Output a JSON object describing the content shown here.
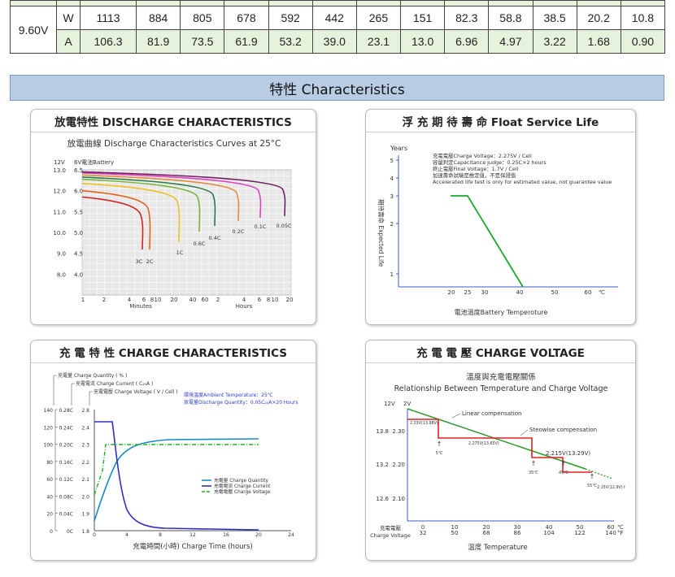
{
  "table": {
    "voltage": "9.60V",
    "rows": [
      {
        "unit": "W",
        "values": [
          "1113",
          "884",
          "805",
          "678",
          "592",
          "442",
          "265",
          "151",
          "82.3",
          "58.8",
          "38.5",
          "20.2",
          "10.8"
        ]
      },
      {
        "unit": "A",
        "values": [
          "106.3",
          "81.9",
          "73.5",
          "61.9",
          "53.2",
          "39.0",
          "23.1",
          "13.0",
          "6.96",
          "4.97",
          "3.22",
          "1.68",
          "0.90"
        ]
      }
    ]
  },
  "section_title": "特性  Characteristics",
  "discharge": {
    "title": "放電特性 DISCHARGE CHARACTERISTICS",
    "subtitle": "放電曲線 Discharge Characteristics Curves at 25°C",
    "y_unit_left": "12V",
    "y_unit_right": "6V電池Battery",
    "y_ticks_12": [
      "13.0",
      "12.0",
      "11.0",
      "10.0",
      "9.0",
      "8.0"
    ],
    "y_ticks_6": [
      "6.5",
      "6.0",
      "5.5",
      "5.0",
      "4.5",
      "4.0"
    ],
    "x_ticks_min": [
      "1",
      "2",
      "4",
      "6",
      "8",
      "10",
      "20",
      "40",
      "60"
    ],
    "x_ticks_hr": [
      "2",
      "4",
      "6",
      "8",
      "10",
      "20"
    ],
    "x_label_min": "Minutes",
    "x_label_hr": "Hours",
    "curve_labels": [
      "3C",
      "2C",
      "1C",
      "0.6C",
      "0.4C",
      "0.2C",
      "0.1C",
      "0.05C"
    ],
    "chart_data": {
      "type": "line",
      "xlabel": "Minutes / Hours",
      "ylabel": "12V",
      "ylim": [
        8.0,
        13.0
      ],
      "series": [
        {
          "name": "3C",
          "color": "#d62020"
        },
        {
          "name": "2C",
          "color": "#e8631a"
        },
        {
          "name": "1C",
          "color": "#f0c020"
        },
        {
          "name": "0.6C",
          "color": "#7ab53a"
        },
        {
          "name": "0.4C",
          "color": "#2a7a4a"
        },
        {
          "name": "0.2C",
          "color": "#e88a3a"
        },
        {
          "name": "0.1C",
          "color": "#e040c0"
        },
        {
          "name": "0.05C",
          "color": "#702060"
        }
      ]
    }
  },
  "float": {
    "title": "浮 充 期 待 壽 命 Float Service Life",
    "y_label": "Years",
    "y_axis_title": "期待壽命 Expected Life",
    "x_axis_title": "電池溫度Battery Temperoture",
    "notes": [
      "充電電壓Charge Voltage：2.275V / Cell",
      "容量判定Capacitance judge：0.25C×2 hours",
      "終止電壓Final Voltage：1.7V / Cell",
      "加速壽命試驗是推定值，不是保證值",
      "Accelerated life test is only for estimated value, not guarantee value"
    ],
    "y_ticks": [
      "5",
      "4",
      "3",
      "2",
      "1"
    ],
    "x_ticks": [
      "20",
      "25",
      "30",
      "40",
      "50",
      "60"
    ],
    "x_unit": "℃",
    "chart_data": {
      "type": "line",
      "x": [
        20,
        25,
        43
      ],
      "y": [
        3,
        3,
        0
      ],
      "xlim": [
        10,
        70
      ],
      "ylim": [
        0,
        5.5
      ],
      "xlabel": "電池溫度Battery Temperoture",
      "ylabel": "期待壽命 Expected Life",
      "color": "#1aaa2a"
    }
  },
  "charge": {
    "title": "充 電 特 性  CHARGE CHARACTERISTICS",
    "legend_top": [
      "充電量  Charge Quantity ( % )",
      "充電電流  Charge Current ( C₂₀A )",
      "充電電壓  Charge Voltage ( V / Cell )"
    ],
    "note1": "環境溫度Ambient Temperature：25℃",
    "note2": "放電量Discharge Quantity：0.05C₂₀A×20 Hours",
    "y_pct": [
      "140",
      "120",
      "100",
      "80",
      "60",
      "40",
      "20",
      "0"
    ],
    "y_cur": [
      "0.28C",
      "0.24C",
      "0.20C",
      "0.16C",
      "0.12C",
      "0.08C",
      "0.04C",
      "0C"
    ],
    "y_volt": [
      "2.8",
      "2.4",
      "2.3",
      "2.2",
      "2.1",
      "2.0",
      "1.9",
      "1.8"
    ],
    "x_ticks": [
      "0",
      "4",
      "8",
      "12",
      "16",
      "20",
      "24"
    ],
    "x_label": "充電時間(小時)  Charge Time (hours)",
    "legend": [
      {
        "label": "充電量    Charge Quantity",
        "color": "#1a8ac8"
      },
      {
        "label": "充電電流  Charge Current",
        "color": "#3030c0"
      },
      {
        "label": "充電電壓  Charge Voltage",
        "color": "#20b020"
      }
    ],
    "chart_data": {
      "type": "line",
      "x": [
        0,
        2,
        4,
        6,
        8,
        12,
        16,
        20
      ],
      "xlim": [
        0,
        24
      ],
      "xlabel": "充電時間(小時)  Charge Time (hours)",
      "series": [
        {
          "name": "Charge Quantity",
          "values": [
            0,
            40,
            85,
            95,
            99,
            101,
            102,
            103
          ]
        },
        {
          "name": "Charge Current",
          "values": [
            0.25,
            0.25,
            0.09,
            0.03,
            0.01,
            0.005,
            0.003,
            0.003
          ]
        },
        {
          "name": "Charge Voltage",
          "values": [
            2.1,
            2.28,
            2.28,
            2.28,
            2.28,
            2.28,
            2.28,
            2.28
          ]
        }
      ]
    }
  },
  "voltage": {
    "title": "充 電 電 壓  CHARGE VOLTAGE",
    "subtitle1": "溫度與充電電壓關係",
    "subtitle2": "Relationship Between Temperature and Charge Voltage",
    "y12": [
      "13.8",
      "13.2",
      "12.6"
    ],
    "y2": [
      "2.30",
      "2.20",
      "2.10"
    ],
    "y_unit_12": "12V",
    "y_unit_2": "2V",
    "linear_label": "Linear compensation",
    "step_label": "Steowise compensation",
    "point_labels": [
      "2.33V(13.98V)",
      "2.275V(13.65V)",
      "2.215V(13.29V)",
      "2.15V(12.9V)↑"
    ],
    "temp_labels": [
      "5℃",
      "35℃",
      "45℃",
      "55℃"
    ],
    "x_c": [
      "0",
      "10",
      "20",
      "30",
      "40",
      "50",
      "60"
    ],
    "x_f": [
      "32",
      "50",
      "68",
      "86",
      "104",
      "122",
      "140"
    ],
    "x_unit_c": "℃",
    "x_unit_f": "°F",
    "y_axis_title1": "充電電壓",
    "y_axis_title2": "Charge Voltage",
    "x_title": "溫度  Temperature",
    "chart_data": {
      "type": "line",
      "x": [
        0,
        5,
        35,
        45,
        55
      ],
      "xlim": [
        0,
        60
      ],
      "series": [
        {
          "name": "Linear compensation",
          "values": [
            2.36,
            2.33,
            2.23,
            2.2,
            2.17
          ],
          "color": "#2a9a2a"
        },
        {
          "name": "Steowise compensation",
          "values": [
            2.33,
            2.275,
            2.275,
            2.215,
            2.15
          ],
          "color": "#e02020"
        }
      ]
    }
  }
}
